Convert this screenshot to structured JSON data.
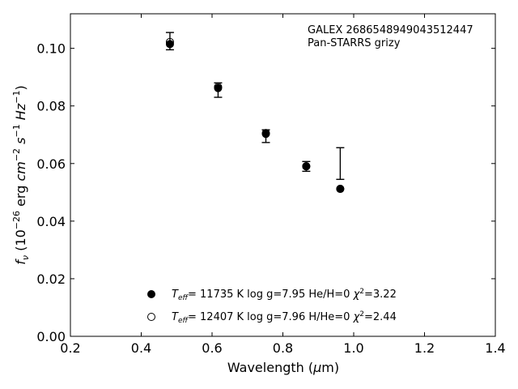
{
  "chart_data": {
    "type": "scatter",
    "xlabel": "Wavelength (μm)",
    "ylabel": "f_ν (10^-26 erg cm^-2 s^-1 Hz^-1)",
    "xlim": [
      0.2,
      1.4
    ],
    "ylim": [
      0.0,
      0.112
    ],
    "x_ticks": [
      0.2,
      0.4,
      0.6,
      0.8,
      1.0,
      1.2,
      1.4
    ],
    "x_tick_labels": [
      "0.2",
      "0.4",
      "0.6",
      "0.8",
      "1.0",
      "1.2",
      "1.4"
    ],
    "y_ticks": [
      0.0,
      0.02,
      0.04,
      0.06,
      0.08,
      0.1
    ],
    "y_tick_labels": [
      "0.00",
      "0.02",
      "0.04",
      "0.06",
      "0.08",
      "0.10"
    ],
    "grid": false,
    "annotations": [
      "GALEX 2686548949043512447",
      "Pan-STARRS grizy"
    ],
    "observed": [
      {
        "x": 0.481,
        "y": 0.1025,
        "yerr_low": 0.0995,
        "yerr_high": 0.1055
      },
      {
        "x": 0.617,
        "y": 0.0855,
        "yerr_low": 0.083,
        "yerr_high": 0.088
      },
      {
        "x": 0.752,
        "y": 0.0695,
        "yerr_low": 0.0673,
        "yerr_high": 0.0717
      },
      {
        "x": 0.866,
        "y": 0.059,
        "yerr_low": 0.0573,
        "yerr_high": 0.0607
      },
      {
        "x": 0.962,
        "y": 0.06,
        "yerr_low": 0.0545,
        "yerr_high": 0.0655
      }
    ],
    "series": [
      {
        "marker": "filled-circle",
        "legend": "T_eff= 11735 K  log g=7.95  He/H=0  χ²=3.22",
        "x": [
          0.481,
          0.617,
          0.752,
          0.866,
          0.962
        ],
        "y": [
          0.1015,
          0.0862,
          0.0703,
          0.059,
          0.0512
        ]
      },
      {
        "marker": "open-circle",
        "legend": "T_eff= 12407 K  log g=7.96  H/He=0  χ²=2.44",
        "x": [
          0.481,
          0.617,
          0.752,
          0.866,
          0.962
        ],
        "y": [
          0.1022,
          0.0866,
          0.0706,
          0.0591,
          0.0512
        ]
      }
    ],
    "legend_placement": "lower-center",
    "colors": {
      "marker": "#000000",
      "axes": "#000000",
      "background": "#ffffff"
    }
  }
}
